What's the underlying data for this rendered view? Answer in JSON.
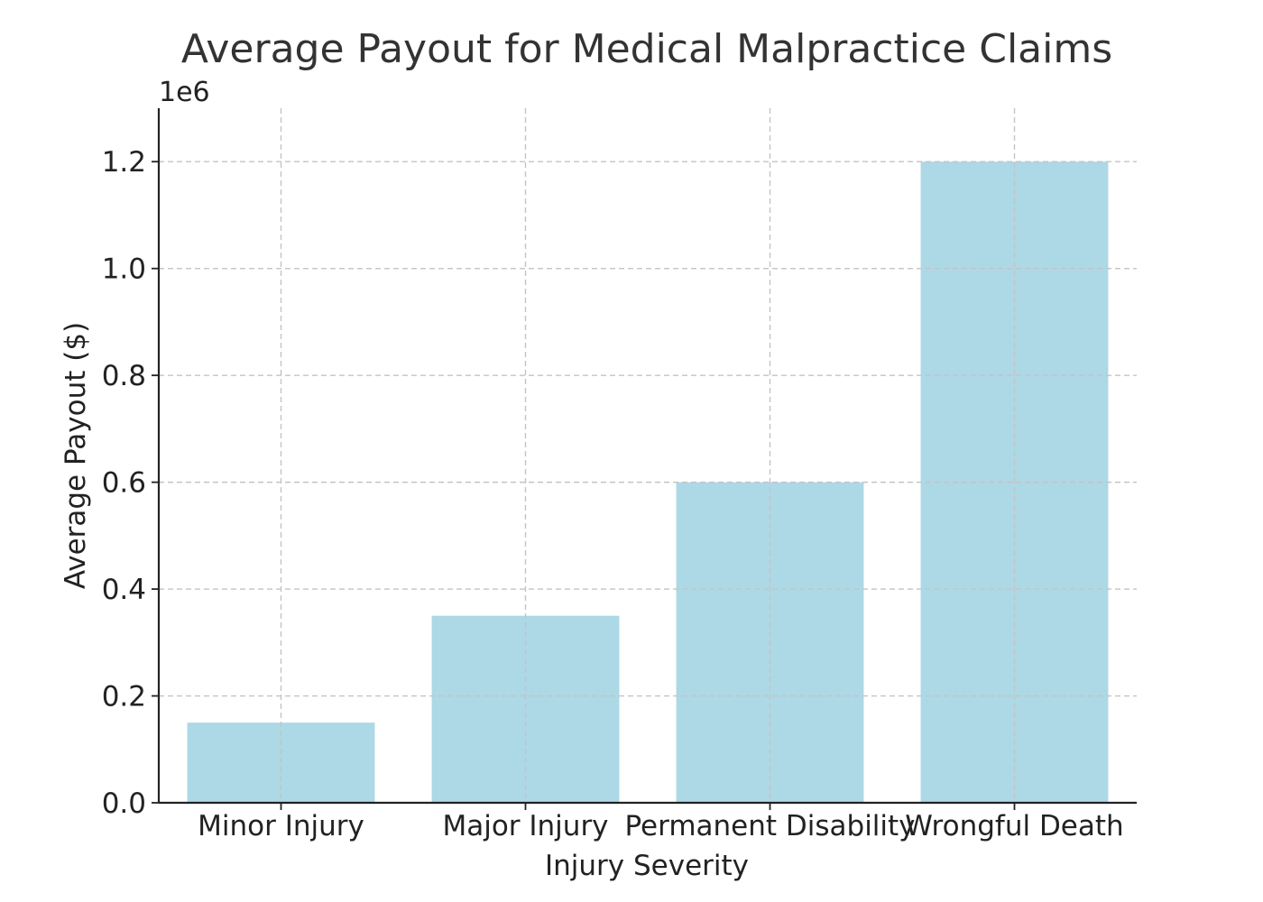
{
  "chart_data": {
    "type": "bar",
    "title": "Average Payout for Medical Malpractice Claims",
    "xlabel": "Injury Severity",
    "ylabel": "Average Payout ($)",
    "y_offset_label": "1e6",
    "categories": [
      "Minor Injury",
      "Major Injury",
      "Permanent Disability",
      "Wrongful Death"
    ],
    "values": [
      150000,
      350000,
      600000,
      1200000
    ],
    "ylim": [
      0,
      1300000
    ],
    "y_ticks": [
      0,
      200000,
      400000,
      600000,
      800000,
      1000000,
      1200000
    ],
    "y_tick_labels": [
      "0.0",
      "0.2",
      "0.4",
      "0.6",
      "0.8",
      "1.0",
      "1.2"
    ],
    "grid": true,
    "bar_color": "#add8e6"
  }
}
